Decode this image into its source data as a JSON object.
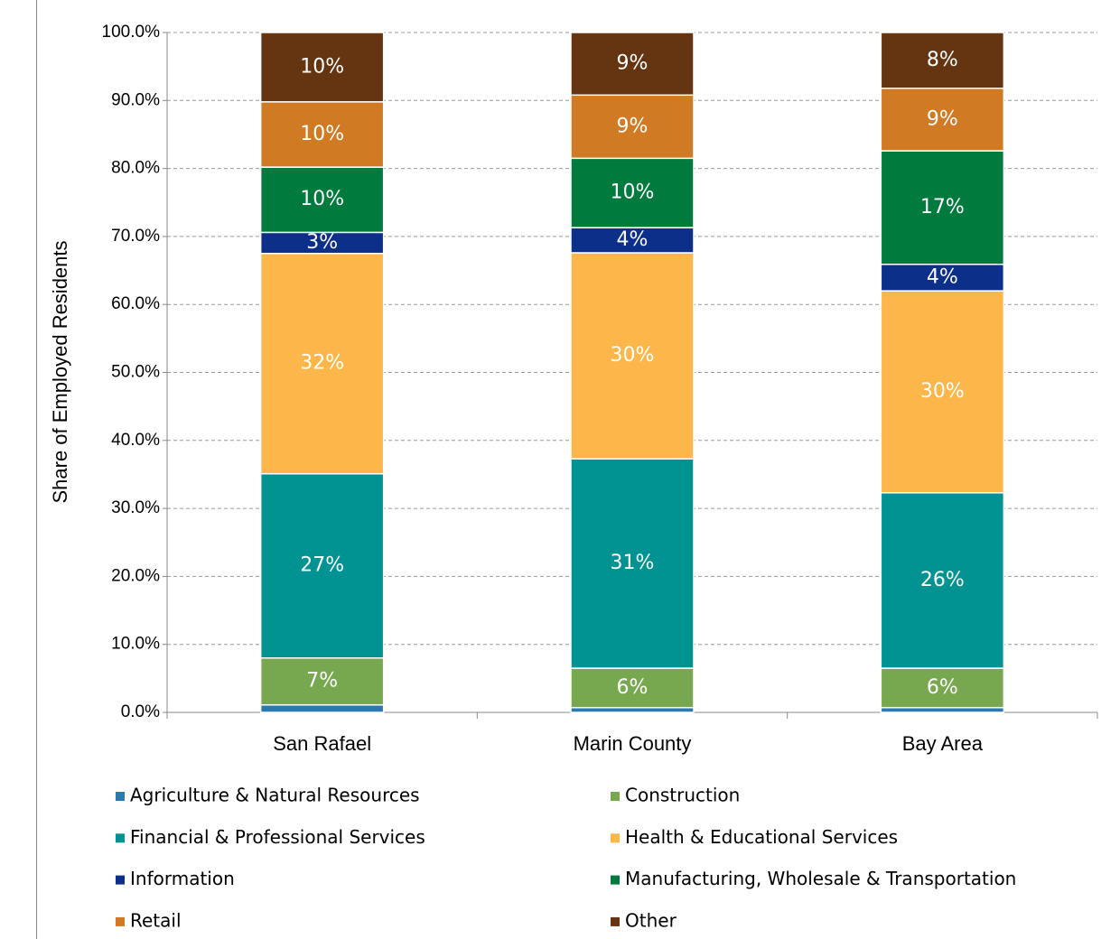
{
  "chart_data": {
    "type": "stacked_bar",
    "y_label": "Share of Employed Residents",
    "categories": [
      "San Rafael",
      "Marin County",
      "Bay Area"
    ],
    "ylim": [
      0,
      100
    ],
    "yticks": [
      {
        "value": 0,
        "label": "0.0%"
      },
      {
        "value": 10,
        "label": "10.0%"
      },
      {
        "value": 20,
        "label": "20.0%"
      },
      {
        "value": 30,
        "label": "30.0%"
      },
      {
        "value": 40,
        "label": "40.0%"
      },
      {
        "value": 50,
        "label": "50.0%"
      },
      {
        "value": 60,
        "label": "60.0%"
      },
      {
        "value": 70,
        "label": "70.0%"
      },
      {
        "value": 80,
        "label": "80.0%"
      },
      {
        "value": 90,
        "label": "90.0%"
      },
      {
        "value": 100,
        "label": "100.0%"
      }
    ],
    "grid": true,
    "legend": "bottom",
    "series": [
      {
        "name": "Agriculture & Natural Resources",
        "color": "#2a7ab0",
        "values": [
          1.1,
          0.7,
          0.7
        ],
        "value_labels": [
          null,
          null,
          null
        ]
      },
      {
        "name": "Construction",
        "color": "#77a850",
        "values": [
          6.9,
          5.8,
          5.8
        ],
        "value_labels": [
          "7%",
          "6%",
          "6%"
        ]
      },
      {
        "name": "Financial & Professional Services",
        "color": "#009391",
        "values": [
          27.1,
          30.8,
          25.8
        ],
        "value_labels": [
          "27%",
          "31%",
          "26%"
        ]
      },
      {
        "name": "Health & Educational Services",
        "color": "#fdb64a",
        "values": [
          32.4,
          30.3,
          29.7
        ],
        "value_labels": [
          "32%",
          "30%",
          "30%"
        ]
      },
      {
        "name": "Information",
        "color": "#0c2f8a",
        "values": [
          3.1,
          3.7,
          3.9
        ],
        "value_labels": [
          "3%",
          "4%",
          "4%"
        ]
      },
      {
        "name": "Manufacturing, Wholesale & Transportation",
        "color": "#007a3d",
        "values": [
          9.6,
          10.2,
          16.7
        ],
        "value_labels": [
          "10%",
          "10%",
          "17%"
        ]
      },
      {
        "name": "Retail",
        "color": "#d07a24",
        "values": [
          9.6,
          9.3,
          9.2
        ],
        "value_labels": [
          "10%",
          "9%",
          "9%"
        ]
      },
      {
        "name": "Other",
        "color": "#653511",
        "values": [
          10.2,
          9.2,
          8.2
        ],
        "value_labels": [
          "10%",
          "9%",
          "8%"
        ]
      }
    ]
  }
}
